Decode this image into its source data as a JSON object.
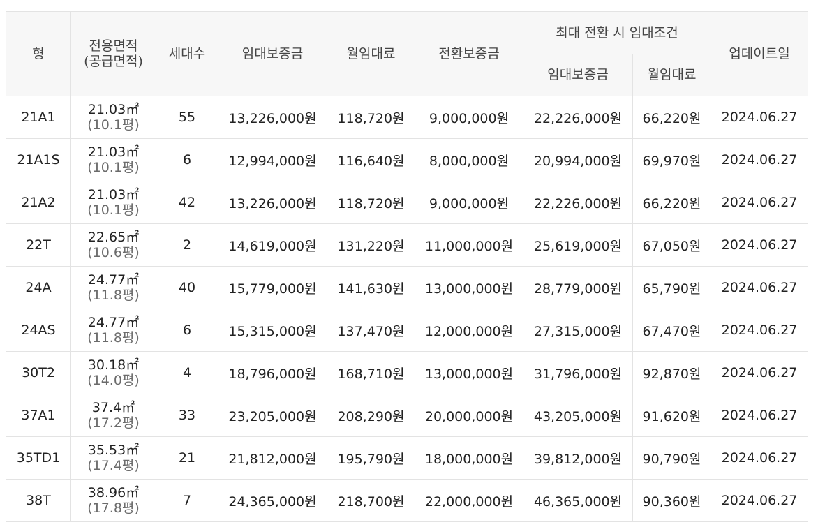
{
  "headers": {
    "type": "형",
    "area_line1": "전용면적",
    "area_line2": "(공급면적)",
    "households": "세대수",
    "deposit": "임대보증금",
    "monthly_rent": "월임대료",
    "conversion_deposit": "전환보증금",
    "max_conversion_group": "최대 전환 시 임대조건",
    "max_deposit": "임대보증금",
    "max_monthly_rent": "월임대료",
    "updated": "업데이트일"
  },
  "rows": [
    {
      "type": "21A1",
      "area": "21.03㎡",
      "supply": "(10.1평)",
      "households": "55",
      "deposit": "13,226,000원",
      "rent": "118,720원",
      "conversion": "9,000,000원",
      "max_deposit": "22,226,000원",
      "max_rent": "66,220원",
      "updated": "2024.06.27"
    },
    {
      "type": "21A1S",
      "area": "21.03㎡",
      "supply": "(10.1평)",
      "households": "6",
      "deposit": "12,994,000원",
      "rent": "116,640원",
      "conversion": "8,000,000원",
      "max_deposit": "20,994,000원",
      "max_rent": "69,970원",
      "updated": "2024.06.27"
    },
    {
      "type": "21A2",
      "area": "21.03㎡",
      "supply": "(10.1평)",
      "households": "42",
      "deposit": "13,226,000원",
      "rent": "118,720원",
      "conversion": "9,000,000원",
      "max_deposit": "22,226,000원",
      "max_rent": "66,220원",
      "updated": "2024.06.27"
    },
    {
      "type": "22T",
      "area": "22.65㎡",
      "supply": "(10.6평)",
      "households": "2",
      "deposit": "14,619,000원",
      "rent": "131,220원",
      "conversion": "11,000,000원",
      "max_deposit": "25,619,000원",
      "max_rent": "67,050원",
      "updated": "2024.06.27"
    },
    {
      "type": "24A",
      "area": "24.77㎡",
      "supply": "(11.8평)",
      "households": "40",
      "deposit": "15,779,000원",
      "rent": "141,630원",
      "conversion": "13,000,000원",
      "max_deposit": "28,779,000원",
      "max_rent": "65,790원",
      "updated": "2024.06.27"
    },
    {
      "type": "24AS",
      "area": "24.77㎡",
      "supply": "(11.8평)",
      "households": "6",
      "deposit": "15,315,000원",
      "rent": "137,470원",
      "conversion": "12,000,000원",
      "max_deposit": "27,315,000원",
      "max_rent": "67,470원",
      "updated": "2024.06.27"
    },
    {
      "type": "30T2",
      "area": "30.18㎡",
      "supply": "(14.0평)",
      "households": "4",
      "deposit": "18,796,000원",
      "rent": "168,710원",
      "conversion": "13,000,000원",
      "max_deposit": "31,796,000원",
      "max_rent": "92,870원",
      "updated": "2024.06.27"
    },
    {
      "type": "37A1",
      "area": "37.4㎡",
      "supply": "(17.2평)",
      "households": "33",
      "deposit": "23,205,000원",
      "rent": "208,290원",
      "conversion": "20,000,000원",
      "max_deposit": "43,205,000원",
      "max_rent": "91,620원",
      "updated": "2024.06.27"
    },
    {
      "type": "35TD1",
      "area": "35.53㎡",
      "supply": "(17.4평)",
      "households": "21",
      "deposit": "21,812,000원",
      "rent": "195,790원",
      "conversion": "18,000,000원",
      "max_deposit": "39,812,000원",
      "max_rent": "90,790원",
      "updated": "2024.06.27"
    },
    {
      "type": "38T",
      "area": "38.96㎡",
      "supply": "(17.8평)",
      "households": "7",
      "deposit": "24,365,000원",
      "rent": "218,700원",
      "conversion": "22,000,000원",
      "max_deposit": "46,365,000원",
      "max_rent": "90,360원",
      "updated": "2024.06.27"
    }
  ]
}
